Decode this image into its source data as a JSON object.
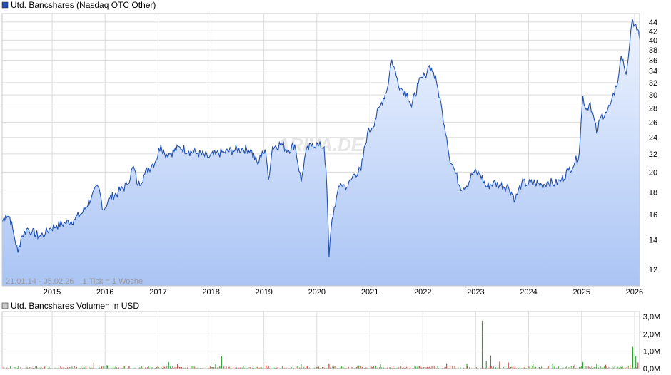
{
  "price_legend": "Utd. Bancshares (Nasdaq OTC Other)",
  "volume_legend": "Utd. Bancshares Volumen in USD",
  "info_text": "21.01.14 - 05.02.26    1 Tick = 1 Woche",
  "watermark": "ARIVA.DE",
  "colors": {
    "line": "#1f4fb0",
    "fill_top": "#eef4ff",
    "fill_bottom": "#aac4f4",
    "vol_up": "#2ca02c",
    "vol_down": "#c0392b",
    "legend_box": "#1f4fb0"
  },
  "chart_data": [
    {
      "type": "area",
      "title": "Utd. Bancshares (Nasdaq OTC Other)",
      "y_scale": "log",
      "ylim": [
        11,
        46
      ],
      "y_ticks": [
        12,
        14,
        16,
        18,
        20,
        22,
        24,
        26,
        28,
        30,
        32,
        34,
        36,
        38,
        40,
        42,
        44
      ],
      "x_ticks": [
        "2015",
        "2016",
        "2017",
        "2018",
        "2019",
        "2020",
        "2021",
        "2022",
        "2023",
        "2024",
        "2025",
        "2026"
      ],
      "x_range": [
        "2014-01-21",
        "2026-02-05"
      ],
      "grid": true,
      "series": [
        {
          "name": "Utd. Bancshares",
          "points": [
            [
              "2014-01-21",
              15.4
            ],
            [
              "2014-02-15",
              16.0
            ],
            [
              "2014-03-15",
              15.8
            ],
            [
              "2014-04-10",
              14.5
            ],
            [
              "2014-05-10",
              13.1
            ],
            [
              "2014-06-01",
              14.2
            ],
            [
              "2014-07-15",
              14.9
            ],
            [
              "2014-08-15",
              14.6
            ],
            [
              "2014-10-01",
              14.3
            ],
            [
              "2014-11-15",
              14.5
            ],
            [
              "2014-12-20",
              14.9
            ],
            [
              "2015-02-01",
              15.1
            ],
            [
              "2015-04-01",
              15.3
            ],
            [
              "2015-06-01",
              15.6
            ],
            [
              "2015-08-01",
              16.2
            ],
            [
              "2015-10-01",
              17.6
            ],
            [
              "2015-11-15",
              18.5
            ],
            [
              "2015-12-20",
              16.4
            ],
            [
              "2016-02-01",
              17.4
            ],
            [
              "2016-04-01",
              18.0
            ],
            [
              "2016-06-01",
              18.7
            ],
            [
              "2016-07-15",
              20.6
            ],
            [
              "2016-08-15",
              18.6
            ],
            [
              "2016-10-01",
              19.8
            ],
            [
              "2016-11-20",
              20.8
            ],
            [
              "2016-12-15",
              21.2
            ],
            [
              "2017-01-20",
              23.1
            ],
            [
              "2017-02-15",
              22.0
            ],
            [
              "2017-04-01",
              22.1
            ],
            [
              "2017-06-01",
              22.8
            ],
            [
              "2017-08-01",
              22.3
            ],
            [
              "2017-10-01",
              22.1
            ],
            [
              "2017-12-15",
              21.6
            ],
            [
              "2018-02-01",
              22.0
            ],
            [
              "2018-04-01",
              22.2
            ],
            [
              "2018-06-01",
              22.4
            ],
            [
              "2018-08-01",
              22.6
            ],
            [
              "2018-10-01",
              22.5
            ],
            [
              "2018-11-20",
              20.8
            ],
            [
              "2018-12-20",
              22.3
            ],
            [
              "2019-01-15",
              22.0
            ],
            [
              "2019-02-01",
              19.2
            ],
            [
              "2019-03-01",
              22.8
            ],
            [
              "2019-05-01",
              23.2
            ],
            [
              "2019-06-15",
              22.4
            ],
            [
              "2019-08-01",
              23.1
            ],
            [
              "2019-09-15",
              19.0
            ],
            [
              "2019-10-15",
              22.1
            ],
            [
              "2019-12-01",
              23.2
            ],
            [
              "2020-01-15",
              23.0
            ],
            [
              "2020-02-20",
              22.8
            ],
            [
              "2020-03-10",
              18.5
            ],
            [
              "2020-03-25",
              12.8
            ],
            [
              "2020-04-15",
              15.6
            ],
            [
              "2020-05-15",
              17.5
            ],
            [
              "2020-06-15",
              18.8
            ],
            [
              "2020-08-01",
              18.5
            ],
            [
              "2020-09-15",
              19.8
            ],
            [
              "2020-11-01",
              20.2
            ],
            [
              "2020-12-15",
              24.6
            ],
            [
              "2021-01-15",
              25.2
            ],
            [
              "2021-03-15",
              28.4
            ],
            [
              "2021-05-01",
              31.0
            ],
            [
              "2021-06-01",
              36.1
            ],
            [
              "2021-07-01",
              33.2
            ],
            [
              "2021-08-01",
              31.1
            ],
            [
              "2021-09-15",
              30.3
            ],
            [
              "2021-10-15",
              28.2
            ],
            [
              "2021-12-01",
              31.8
            ],
            [
              "2022-01-15",
              33.2
            ],
            [
              "2022-02-15",
              35.0
            ],
            [
              "2022-03-15",
              33.8
            ],
            [
              "2022-04-15",
              31.0
            ],
            [
              "2022-05-15",
              27.5
            ],
            [
              "2022-06-15",
              24.0
            ],
            [
              "2022-07-01",
              21.8
            ],
            [
              "2022-08-01",
              20.5
            ],
            [
              "2022-09-15",
              18.5
            ],
            [
              "2022-11-01",
              18.6
            ],
            [
              "2022-12-15",
              20.0
            ],
            [
              "2023-02-01",
              19.8
            ],
            [
              "2023-03-15",
              18.5
            ],
            [
              "2023-05-01",
              18.9
            ],
            [
              "2023-06-15",
              18.7
            ],
            [
              "2023-08-15",
              18.5
            ],
            [
              "2023-10-01",
              17.3
            ],
            [
              "2023-11-15",
              18.9
            ],
            [
              "2023-12-31",
              18.8
            ],
            [
              "2024-02-15",
              18.9
            ],
            [
              "2024-04-01",
              18.7
            ],
            [
              "2024-05-15",
              19.0
            ],
            [
              "2024-07-01",
              18.8
            ],
            [
              "2024-08-15",
              19.2
            ],
            [
              "2024-10-01",
              20.2
            ],
            [
              "2024-11-15",
              21.0
            ],
            [
              "2024-12-15",
              22.0
            ],
            [
              "2025-01-10",
              29.8
            ],
            [
              "2025-02-01",
              27.8
            ],
            [
              "2025-03-01",
              28.8
            ],
            [
              "2025-04-15",
              24.5
            ],
            [
              "2025-05-15",
              26.8
            ],
            [
              "2025-06-15",
              27.4
            ],
            [
              "2025-07-15",
              28.3
            ],
            [
              "2025-08-15",
              30.0
            ],
            [
              "2025-09-15",
              33.5
            ],
            [
              "2025-10-01",
              36.8
            ],
            [
              "2025-10-20",
              35.0
            ],
            [
              "2025-11-05",
              33.4
            ],
            [
              "2025-12-01",
              40.0
            ],
            [
              "2025-12-20",
              44.4
            ],
            [
              "2026-01-10",
              43.5
            ],
            [
              "2026-02-05",
              40.0
            ]
          ]
        }
      ]
    },
    {
      "type": "bar",
      "title": "Utd. Bancshares Volumen in USD",
      "y_ticks": [
        "0,0M",
        "1,0M",
        "2,0M",
        "3,0M"
      ],
      "ylim": [
        0,
        3.0
      ],
      "x_range": [
        "2014-01-21",
        "2026-02-05"
      ],
      "spikes": [
        {
          "date": "2015-03-01",
          "value": 0.12,
          "dir": "down"
        },
        {
          "date": "2015-10-15",
          "value": 0.35,
          "dir": "down"
        },
        {
          "date": "2016-01-15",
          "value": 0.2,
          "dir": "up"
        },
        {
          "date": "2016-06-15",
          "value": 0.14,
          "dir": "down"
        },
        {
          "date": "2017-03-15",
          "value": 0.38,
          "dir": "up"
        },
        {
          "date": "2017-05-15",
          "value": 0.25,
          "dir": "down"
        },
        {
          "date": "2018-02-01",
          "value": 0.25,
          "dir": "up"
        },
        {
          "date": "2018-03-15",
          "value": 0.7,
          "dir": "up"
        },
        {
          "date": "2019-01-15",
          "value": 0.22,
          "dir": "down"
        },
        {
          "date": "2019-09-15",
          "value": 0.25,
          "dir": "up"
        },
        {
          "date": "2020-03-25",
          "value": 0.28,
          "dir": "down"
        },
        {
          "date": "2020-10-15",
          "value": 0.18,
          "dir": "up"
        },
        {
          "date": "2021-03-15",
          "value": 0.25,
          "dir": "up"
        },
        {
          "date": "2021-09-01",
          "value": 0.3,
          "dir": "down"
        },
        {
          "date": "2022-06-15",
          "value": 0.3,
          "dir": "down"
        },
        {
          "date": "2022-11-01",
          "value": 0.28,
          "dir": "up"
        },
        {
          "date": "2023-02-15",
          "value": 2.75,
          "dir": "up"
        },
        {
          "date": "2023-03-15",
          "value": 0.45,
          "dir": "up"
        },
        {
          "date": "2023-04-15",
          "value": 0.75,
          "dir": "up"
        },
        {
          "date": "2023-06-15",
          "value": 0.4,
          "dir": "down"
        },
        {
          "date": "2023-08-15",
          "value": 0.35,
          "dir": "down"
        },
        {
          "date": "2024-02-01",
          "value": 0.25,
          "dir": "up"
        },
        {
          "date": "2024-06-15",
          "value": 0.3,
          "dir": "up"
        },
        {
          "date": "2024-11-15",
          "value": 0.22,
          "dir": "down"
        },
        {
          "date": "2025-01-10",
          "value": 0.38,
          "dir": "up"
        },
        {
          "date": "2025-04-15",
          "value": 0.28,
          "dir": "up"
        },
        {
          "date": "2025-06-15",
          "value": 0.22,
          "dir": "down"
        },
        {
          "date": "2025-12-01",
          "value": 0.2,
          "dir": "down"
        },
        {
          "date": "2025-12-20",
          "value": 1.25,
          "dir": "up"
        },
        {
          "date": "2026-01-10",
          "value": 0.72,
          "dir": "up"
        },
        {
          "date": "2026-01-25",
          "value": 0.35,
          "dir": "down"
        }
      ]
    }
  ]
}
